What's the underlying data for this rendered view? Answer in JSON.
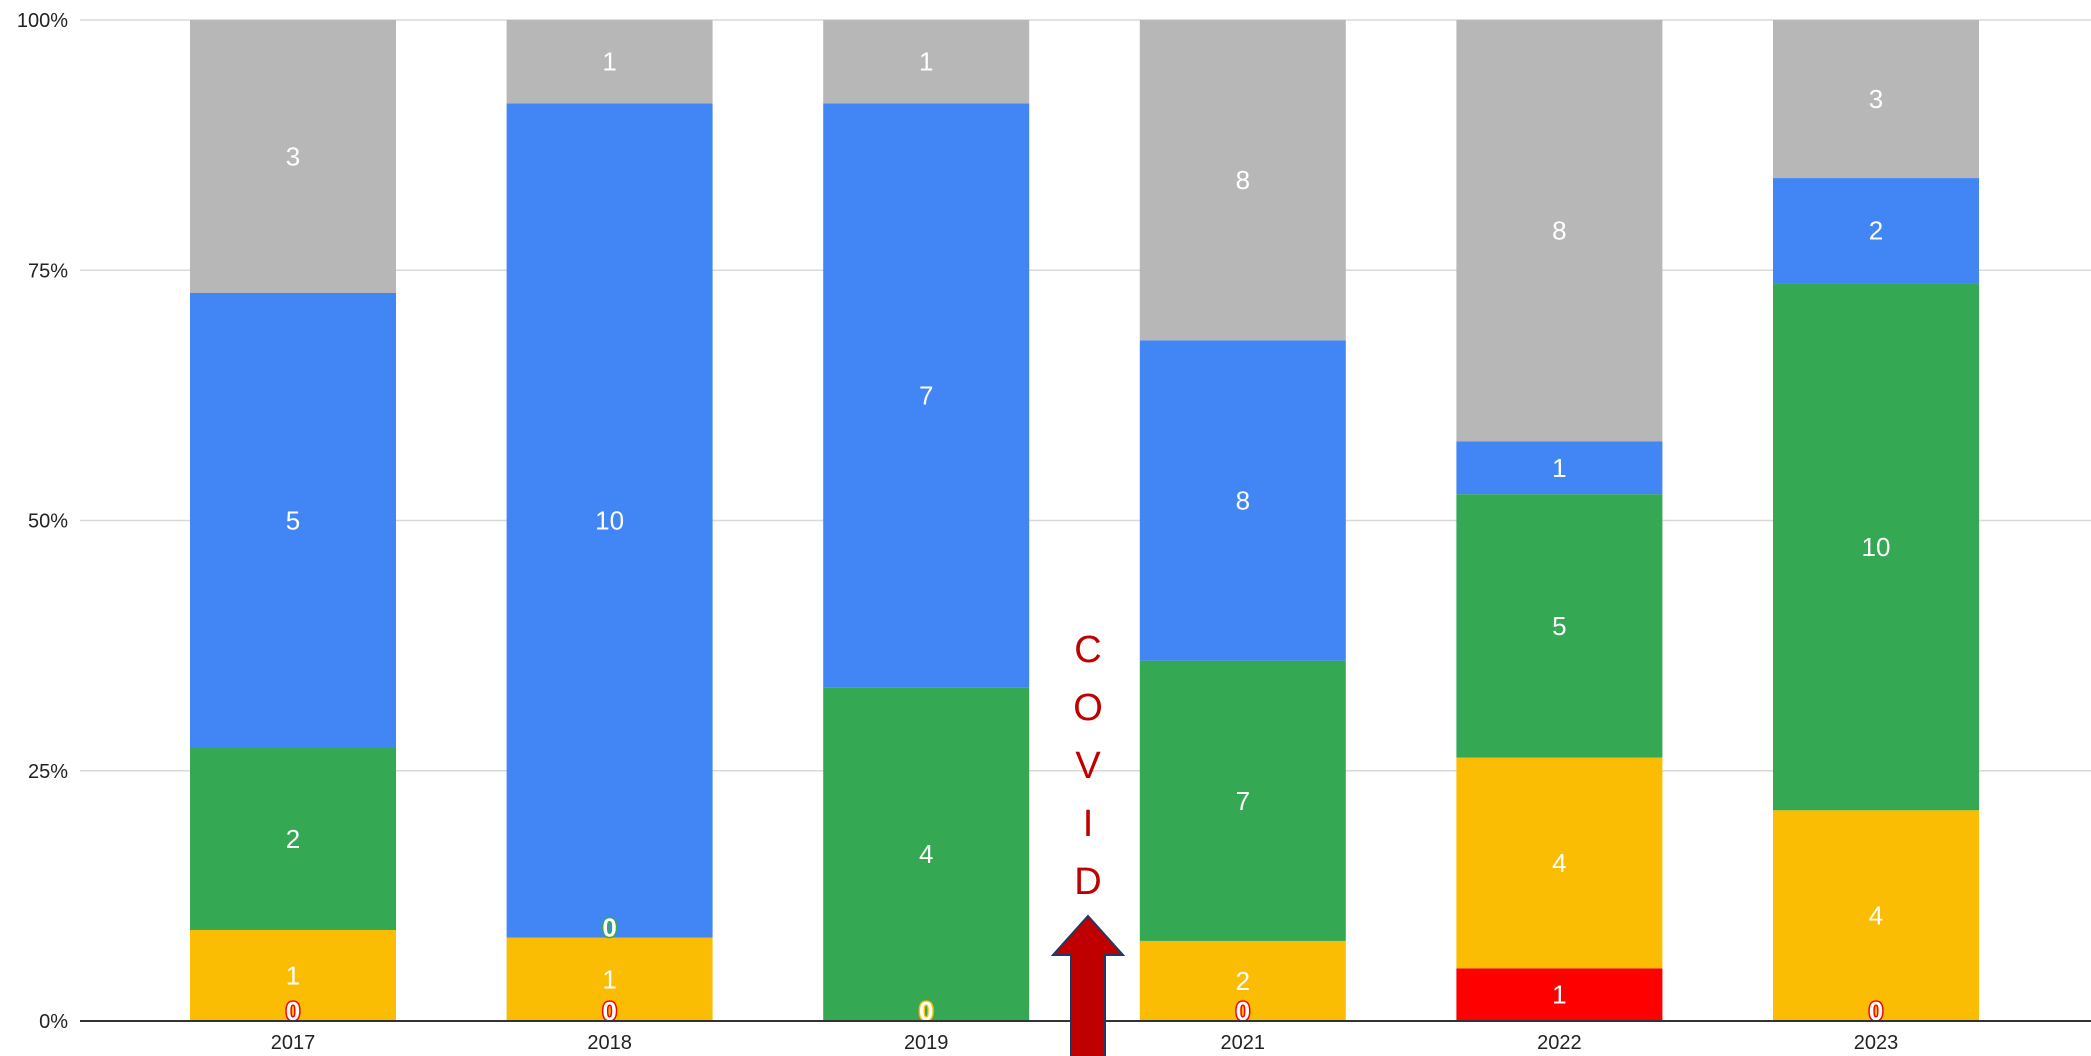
{
  "chart_data": {
    "type": "bar",
    "stacked": "percent",
    "categories": [
      "2017",
      "2018",
      "2019",
      "2021",
      "2022",
      "2023"
    ],
    "series": [
      {
        "color": "#ff0000",
        "values": [
          0,
          0,
          0,
          0,
          1,
          0
        ]
      },
      {
        "color": "#fbbc04",
        "values": [
          1,
          1,
          0,
          2,
          4,
          4
        ]
      },
      {
        "color": "#34a853",
        "values": [
          2,
          0,
          4,
          7,
          5,
          10
        ]
      },
      {
        "color": "#4285f4",
        "values": [
          5,
          10,
          7,
          8,
          1,
          2
        ]
      },
      {
        "color": "#b7b7b7",
        "values": [
          3,
          1,
          1,
          8,
          8,
          3
        ]
      }
    ],
    "yticks": [
      "0%",
      "25%",
      "50%",
      "75%",
      "100%"
    ],
    "ylim": [
      0,
      100
    ],
    "grid": true,
    "legend": "none",
    "annotation": {
      "letters": [
        "C",
        "O",
        "V",
        "I",
        "D"
      ],
      "color": "#c00000",
      "arrow_color": "#c00000"
    }
  }
}
